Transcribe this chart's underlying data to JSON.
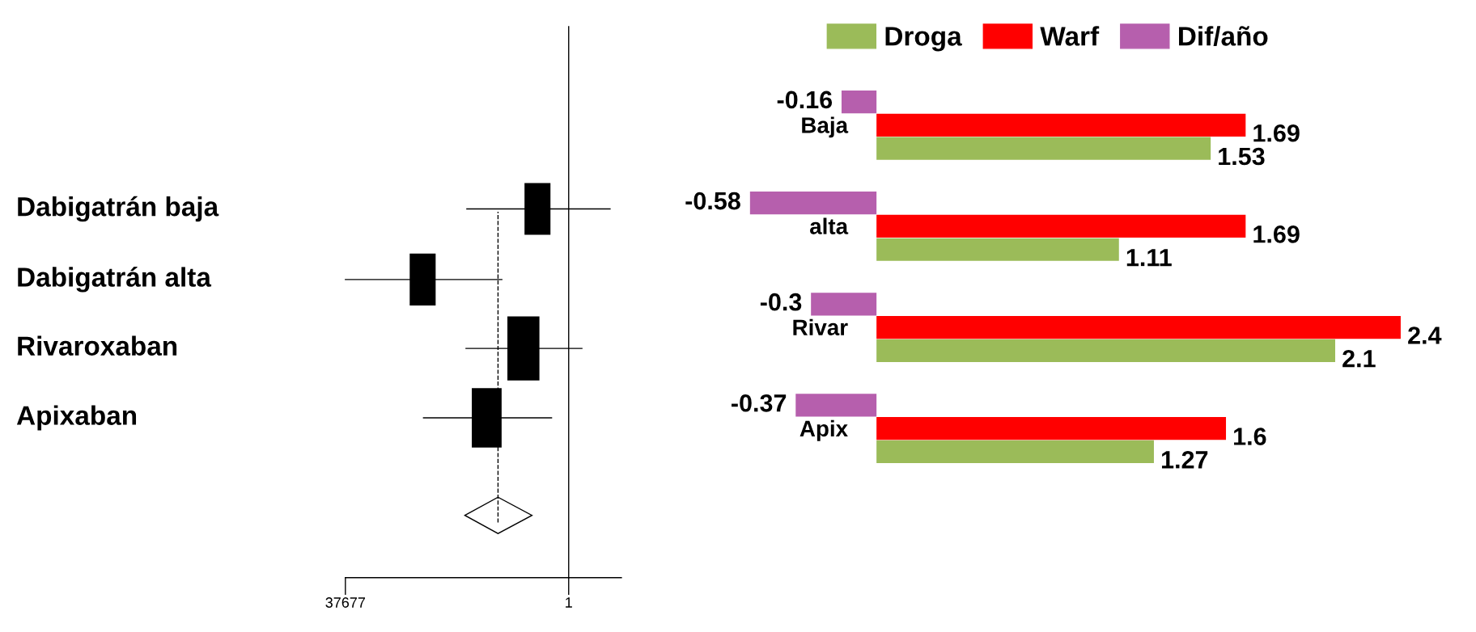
{
  "chart_data": [
    {
      "type": "other",
      "categories": [
        "Dabigatrán baja",
        "Dabigatrán alta",
        "Rivaroxaban",
        "Apixaban"
      ],
      "annotations": [
        "37677",
        "1"
      ]
    },
    {
      "type": "bar",
      "orientation": "horizontal",
      "categories": [
        "Baja",
        "alta",
        "Rivar",
        "Apix"
      ],
      "series": [
        {
          "name": "Droga",
          "color": "#9bbb59",
          "values": [
            1.53,
            1.11,
            2.1,
            1.27
          ]
        },
        {
          "name": "Warf",
          "color": "#ff0000",
          "values": [
            1.69,
            1.69,
            2.4,
            1.6
          ]
        },
        {
          "name": "Dif/año",
          "color": "#b65fad",
          "values": [
            -0.16,
            -0.58,
            -0.3,
            -0.37
          ]
        }
      ],
      "data_labels": true,
      "legend": "top"
    }
  ]
}
